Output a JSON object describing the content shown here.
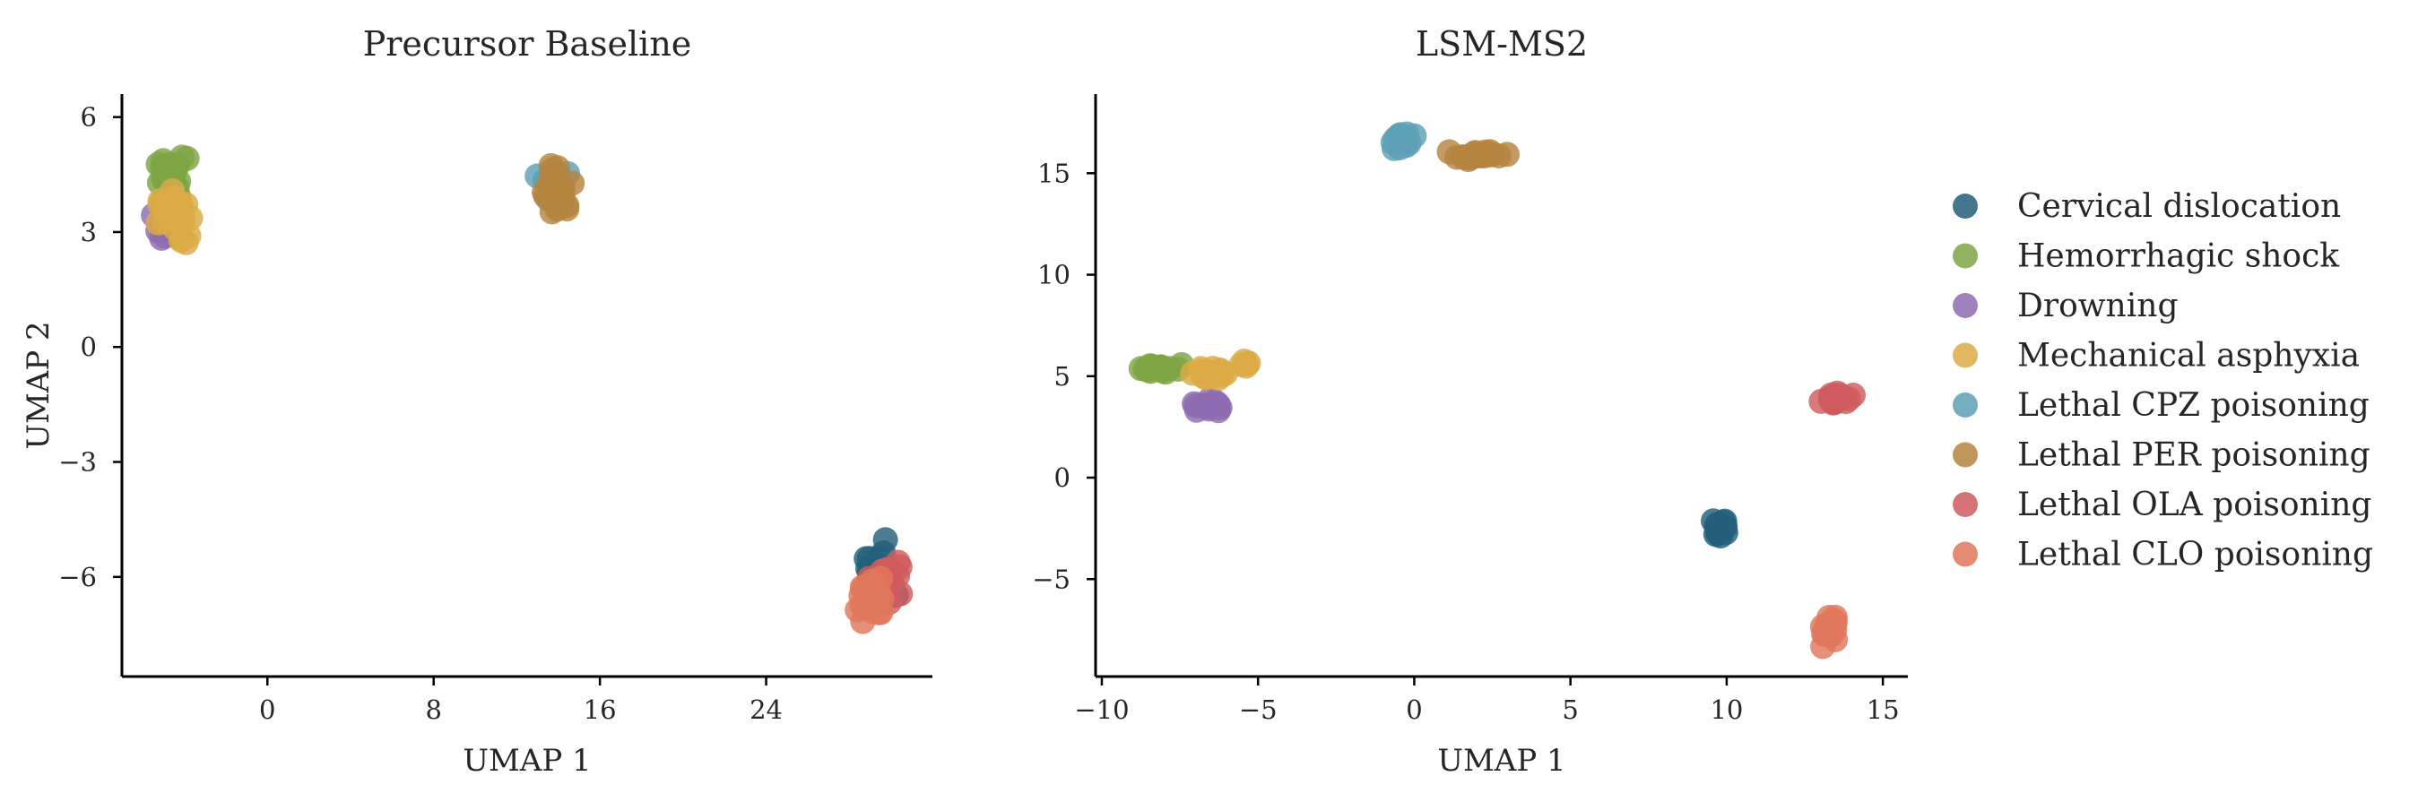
{
  "colors": {
    "Cervical dislocation": "#235f7a",
    "Hemorrhagic shock": "#7ea544",
    "Drowning": "#8e6bb0",
    "Mechanical asphyxia": "#dcab45",
    "Lethal CPZ poisoning": "#5ea0b6",
    "Lethal PER poisoning": "#b5843f",
    "Lethal OLA poisoning": "#cf5b5e",
    "Lethal CLO poisoning": "#e0775c"
  },
  "legend": {
    "placement": "right",
    "items": [
      "Cervical dislocation",
      "Hemorrhagic shock",
      "Drowning",
      "Mechanical asphyxia",
      "Lethal CPZ poisoning",
      "Lethal PER poisoning",
      "Lethal OLA poisoning",
      "Lethal CLO poisoning"
    ]
  },
  "chart_data": [
    {
      "type": "scatter",
      "title": "Precursor Baseline",
      "xlabel": "UMAP 1",
      "ylabel": "UMAP 2",
      "xlim": [
        -7,
        32
      ],
      "ylim": [
        -8.6,
        6.6
      ],
      "xticks": [
        0,
        8,
        16,
        24
      ],
      "xtick_labels": [
        "0",
        "8",
        "16",
        "24"
      ],
      "yticks": [
        6,
        3,
        0,
        -3,
        -6
      ],
      "ytick_labels": [
        "6",
        "3",
        "0",
        "−3",
        "−6"
      ],
      "grid": false,
      "series": [
        {
          "name": "Cervical dislocation",
          "clusters": [
            {
              "cx": 29.3,
              "cy": -6.1,
              "sx": 0.55,
              "sy": 0.45,
              "n": 28
            }
          ]
        },
        {
          "name": "Hemorrhagic shock",
          "clusters": [
            {
              "cx": -4.6,
              "cy": 4.3,
              "sx": 0.45,
              "sy": 0.4,
              "n": 30
            }
          ]
        },
        {
          "name": "Drowning",
          "clusters": [
            {
              "cx": -5.0,
              "cy": 3.1,
              "sx": 0.35,
              "sy": 0.3,
              "n": 8
            }
          ]
        },
        {
          "name": "Mechanical asphyxia",
          "clusters": [
            {
              "cx": -4.5,
              "cy": 3.4,
              "sx": 0.45,
              "sy": 0.4,
              "n": 30
            }
          ]
        },
        {
          "name": "Lethal CPZ poisoning",
          "clusters": [
            {
              "cx": 13.7,
              "cy": 4.2,
              "sx": 0.35,
              "sy": 0.35,
              "n": 12
            }
          ]
        },
        {
          "name": "Lethal PER poisoning",
          "clusters": [
            {
              "cx": 14.0,
              "cy": 4.1,
              "sx": 0.45,
              "sy": 0.4,
              "n": 24
            }
          ]
        },
        {
          "name": "Lethal OLA poisoning",
          "clusters": [
            {
              "cx": 30.0,
              "cy": -6.0,
              "sx": 0.4,
              "sy": 0.4,
              "n": 20
            }
          ]
        },
        {
          "name": "Lethal CLO poisoning",
          "clusters": [
            {
              "cx": 29.0,
              "cy": -6.6,
              "sx": 0.45,
              "sy": 0.35,
              "n": 24
            }
          ]
        }
      ]
    },
    {
      "type": "scatter",
      "title": "LSM-MS2",
      "xlabel": "UMAP 1",
      "ylabel": "",
      "xlim": [
        -10.2,
        15.8
      ],
      "ylim": [
        -9.8,
        18.9
      ],
      "xticks": [
        -10,
        -5,
        0,
        5,
        10,
        15
      ],
      "xtick_labels": [
        "−10",
        "−5",
        "0",
        "5",
        "10",
        "15"
      ],
      "yticks": [
        15,
        10,
        5,
        0,
        -5
      ],
      "ytick_labels": [
        "15",
        "10",
        "5",
        "0",
        "−5"
      ],
      "grid": false,
      "series": [
        {
          "name": "Cervical dislocation",
          "clusters": [
            {
              "cx": 9.8,
              "cy": -2.4,
              "sx": 0.2,
              "sy": 0.3,
              "n": 18
            }
          ]
        },
        {
          "name": "Hemorrhagic shock",
          "clusters": [
            {
              "cx": -8.1,
              "cy": 5.4,
              "sx": 0.4,
              "sy": 0.18,
              "n": 18
            }
          ]
        },
        {
          "name": "Drowning",
          "clusters": [
            {
              "cx": -6.7,
              "cy": 3.5,
              "sx": 0.3,
              "sy": 0.25,
              "n": 14
            }
          ]
        },
        {
          "name": "Mechanical asphyxia",
          "clusters": [
            {
              "cx": -6.7,
              "cy": 5.2,
              "sx": 0.35,
              "sy": 0.2,
              "n": 16
            },
            {
              "cx": -5.3,
              "cy": 5.6,
              "sx": 0.15,
              "sy": 0.12,
              "n": 5
            }
          ]
        },
        {
          "name": "Lethal CPZ poisoning",
          "clusters": [
            {
              "cx": -0.4,
              "cy": 16.6,
              "sx": 0.25,
              "sy": 0.3,
              "n": 16
            }
          ]
        },
        {
          "name": "Lethal PER poisoning",
          "clusters": [
            {
              "cx": 2.1,
              "cy": 15.9,
              "sx": 0.45,
              "sy": 0.12,
              "n": 20
            }
          ]
        },
        {
          "name": "Lethal OLA poisoning",
          "clusters": [
            {
              "cx": 13.5,
              "cy": 3.9,
              "sx": 0.35,
              "sy": 0.18,
              "n": 16
            }
          ]
        },
        {
          "name": "Lethal CLO poisoning",
          "clusters": [
            {
              "cx": 13.3,
              "cy": -7.6,
              "sx": 0.2,
              "sy": 0.45,
              "n": 14
            }
          ]
        }
      ]
    }
  ]
}
